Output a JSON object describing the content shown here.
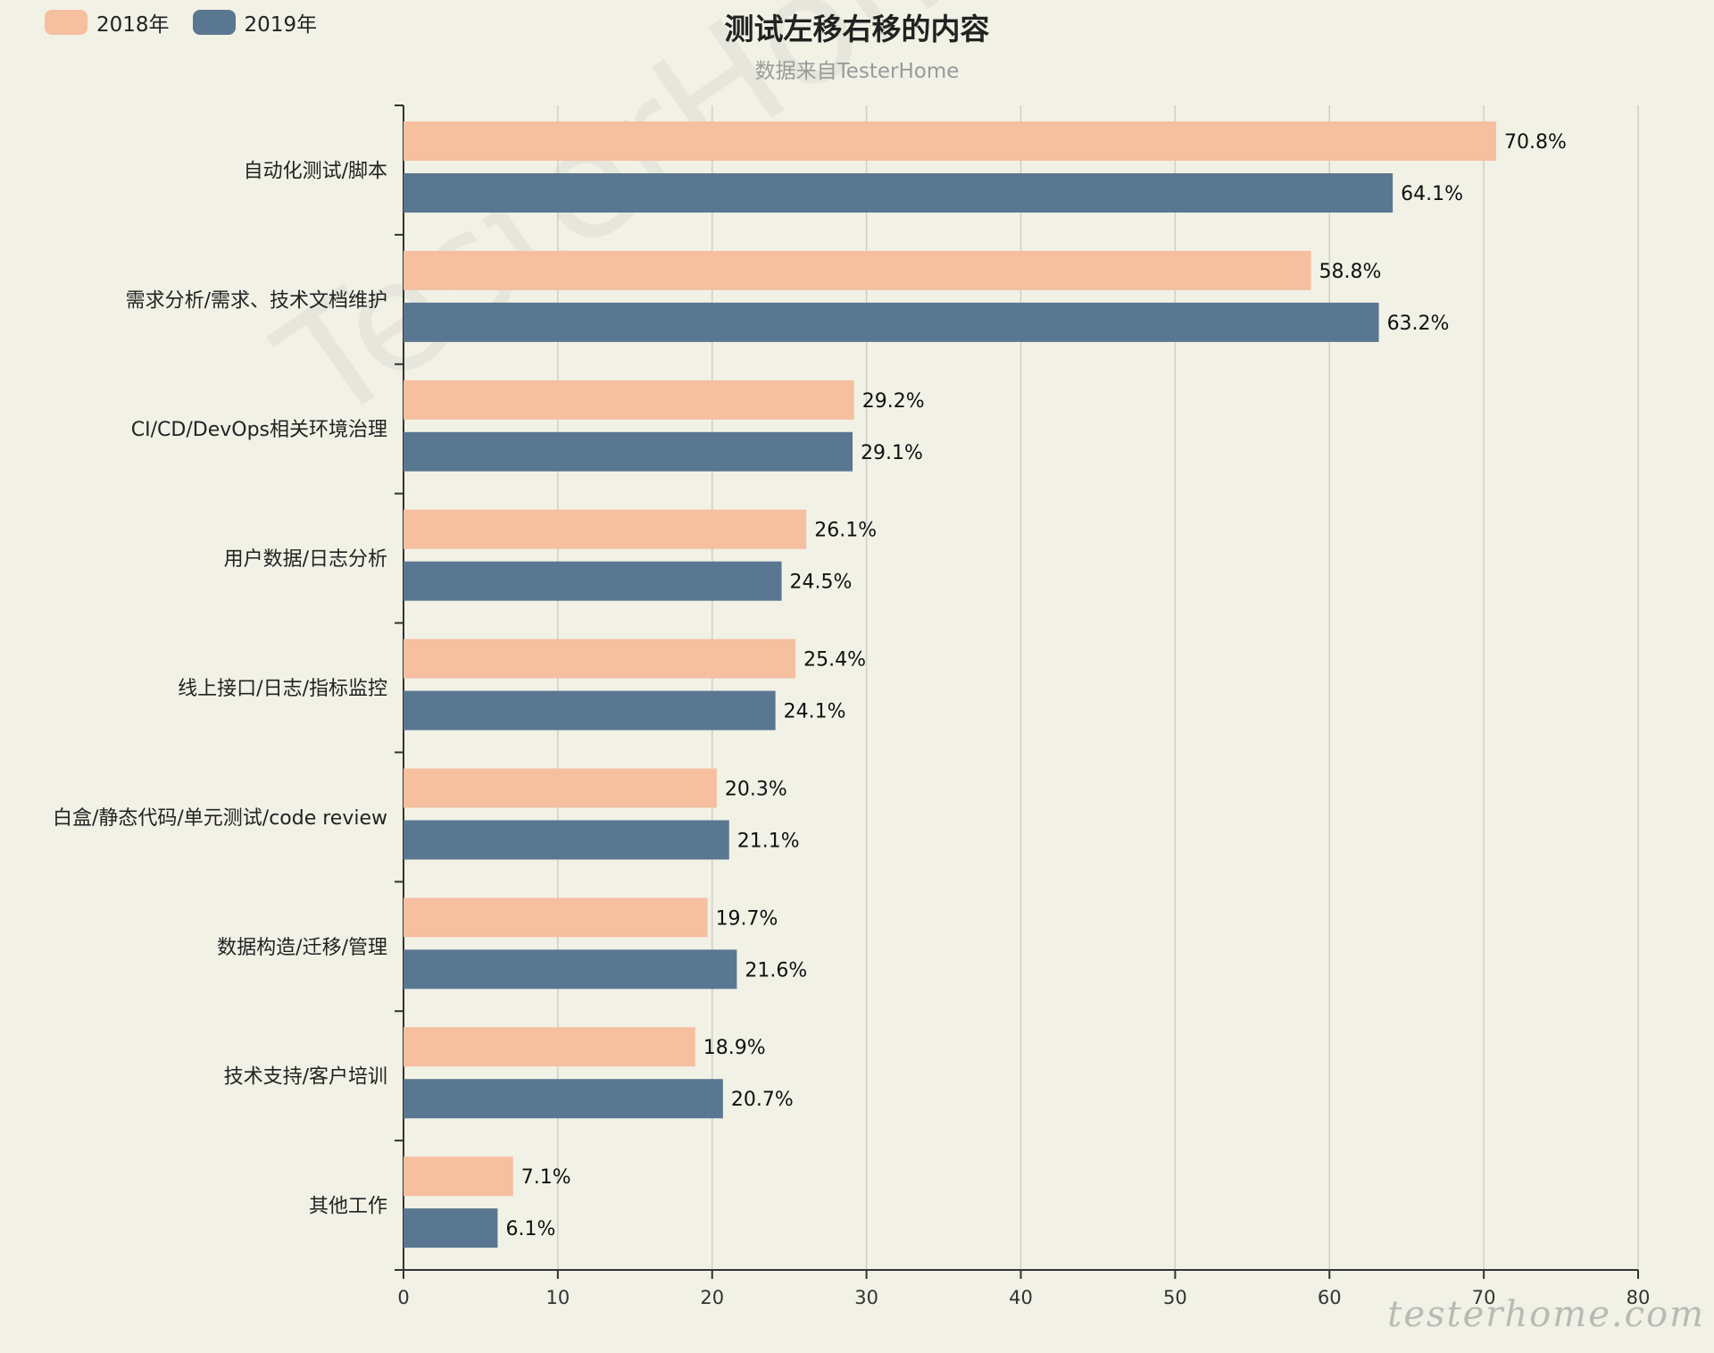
{
  "watermark": "TesterHome",
  "signature": "testerhome.com",
  "chart_data": {
    "type": "bar",
    "orientation": "horizontal",
    "title": "测试左移右移的内容",
    "subtitle": "数据来自TesterHome",
    "categories": [
      "自动化测试/脚本",
      "需求分析/需求、技术文档维护",
      "CI/CD/DevOps相关环境治理",
      "用户数据/日志分析",
      "线上接口/日志/指标监控",
      "白盒/静态代码/单元测试/code review",
      "数据构造/迁移/管理",
      "技术支持/客户培训",
      "其他工作"
    ],
    "series": [
      {
        "name": "2018年",
        "color": "#f5bfa0",
        "values": [
          70.8,
          58.8,
          29.2,
          26.1,
          25.4,
          20.3,
          19.7,
          18.9,
          7.1
        ],
        "labels": [
          "70.8%",
          "58.8%",
          "29.2%",
          "26.1%",
          "25.4%",
          "20.3%",
          "19.7%",
          "18.9%",
          "7.1%"
        ]
      },
      {
        "name": "2019年",
        "color": "#5a7791",
        "values": [
          64.1,
          63.2,
          29.1,
          24.5,
          24.1,
          21.1,
          21.6,
          20.7,
          6.1
        ],
        "labels": [
          "64.1%",
          "63.2%",
          "29.1%",
          "24.5%",
          "24.1%",
          "21.1%",
          "21.6%",
          "20.7%",
          "6.1%"
        ]
      }
    ],
    "xlim": [
      0,
      80
    ],
    "xticks": [
      "0",
      "10",
      "20",
      "30",
      "40",
      "50",
      "60",
      "70",
      "80"
    ],
    "grid": true,
    "legend_position": "top-left"
  }
}
